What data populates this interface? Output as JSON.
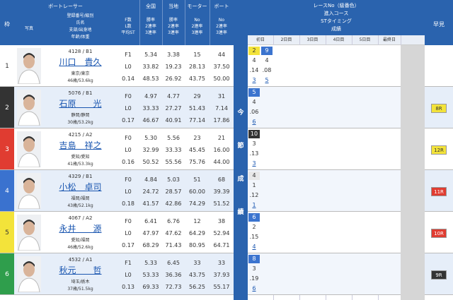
{
  "header": {
    "waku": "枠",
    "racer": "ボートレーサー",
    "photo": "写真",
    "info": [
      "登録番号/級別",
      "氏名",
      "支部/出身地",
      "年齢/体重"
    ],
    "fls": [
      "F数",
      "L数",
      "平均ST"
    ],
    "zenkoku": "全国",
    "touchi": "当地",
    "motor": "モーター",
    "boat": "ボート",
    "rate_sub": [
      "勝率",
      "2連率",
      "3連率"
    ],
    "no_sub": [
      "No",
      "2連率",
      "3連率"
    ],
    "results": [
      "レースNo（級番色）",
      "進入コース",
      "STタイミング",
      "成績"
    ],
    "hayami": "早見",
    "days": [
      "初日",
      "2日目",
      "3日目",
      "4日目",
      "5日目",
      "最終日"
    ],
    "konsetsu": [
      "今",
      "節",
      "成",
      "績"
    ]
  },
  "racers": [
    {
      "waku": "1",
      "reg": "4128 / B1",
      "name": "川口　貴久",
      "branch": "東京/東京",
      "age": "46歳/53.6kg",
      "fls": [
        "F1",
        "L0",
        "0.14"
      ],
      "zenkoku": [
        "5.34",
        "33.82",
        "48.53"
      ],
      "touchi": [
        "3.38",
        "19.23",
        "26.92"
      ],
      "motor": [
        "15",
        "28.13",
        "43.75"
      ],
      "boat": [
        "44",
        "37.50",
        "50.00"
      ],
      "races": [
        {
          "no": "2",
          "color": "#f3e33a",
          "course": "4",
          "st": ".14",
          "result": "3"
        },
        {
          "no": "9",
          "color": "#3b74cf",
          "course": "4",
          "st": ".08",
          "result": "5"
        }
      ]
    },
    {
      "waku": "2",
      "reg": "5076 / B1",
      "name": "石原　　光",
      "branch": "静岡/静岡",
      "age": "30歳/53.2kg",
      "fls": [
        "F0",
        "L0",
        "0.17"
      ],
      "zenkoku": [
        "4.97",
        "33.33",
        "46.67"
      ],
      "touchi": [
        "4.77",
        "27.27",
        "40.91"
      ],
      "motor": [
        "29",
        "51.43",
        "77.14"
      ],
      "boat": [
        "31",
        "7.14",
        "17.86"
      ],
      "races": [
        {
          "no": "5",
          "color": "#3b74cf",
          "course": "4",
          "st": ".06",
          "result": "6"
        }
      ],
      "hayami": "8R",
      "hayami_color": "#f3e33a"
    },
    {
      "waku": "3",
      "reg": "4215 / A2",
      "name": "吉島　祥之",
      "branch": "愛知/愛知",
      "age": "41歳/53.3kg",
      "fls": [
        "F0",
        "L0",
        "0.16"
      ],
      "zenkoku": [
        "5.30",
        "32.99",
        "50.52"
      ],
      "touchi": [
        "5.56",
        "33.33",
        "55.56"
      ],
      "motor": [
        "23",
        "45.45",
        "75.76"
      ],
      "boat": [
        "21",
        "16.00",
        "44.00"
      ],
      "races": [
        {
          "no": "10",
          "color": "#333333",
          "course": "3",
          "st": ".13",
          "result": "3"
        }
      ],
      "hayami": "12R",
      "hayami_color": "#f3e33a"
    },
    {
      "waku": "4",
      "reg": "4329 / B1",
      "name": "小松　卓司",
      "branch": "福岡/福岡",
      "age": "43歳/52.1kg",
      "fls": [
        "F0",
        "L0",
        "0.18"
      ],
      "zenkoku": [
        "4.84",
        "24.72",
        "41.57"
      ],
      "touchi": [
        "5.03",
        "28.57",
        "42.86"
      ],
      "motor": [
        "51",
        "60.00",
        "74.29"
      ],
      "boat": [
        "68",
        "39.39",
        "51.52"
      ],
      "races": [
        {
          "no": "4",
          "color": "#e8e8e8",
          "course": "1",
          "st": ".12",
          "result": "1"
        }
      ],
      "hayami": "11R",
      "hayami_color": "#e03c31"
    },
    {
      "waku": "5",
      "reg": "4067 / A2",
      "name": "永井　　源",
      "branch": "愛知/福岡",
      "age": "46歳/52.6kg",
      "fls": [
        "F0",
        "L0",
        "0.17"
      ],
      "zenkoku": [
        "6.41",
        "47.97",
        "68.29"
      ],
      "touchi": [
        "6.76",
        "47.62",
        "71.43"
      ],
      "motor": [
        "12",
        "64.29",
        "80.95"
      ],
      "boat": [
        "38",
        "52.94",
        "64.71"
      ],
      "races": [
        {
          "no": "6",
          "color": "#3b74cf",
          "course": "2",
          "st": ".15",
          "result": "4"
        }
      ],
      "hayami": "10R",
      "hayami_color": "#e03c31"
    },
    {
      "waku": "6",
      "reg": "4532 / A1",
      "name": "秋元　　哲",
      "branch": "埼玉/栃木",
      "age": "37歳/51.5kg",
      "fls": [
        "F1",
        "L0",
        "0.13"
      ],
      "zenkoku": [
        "5.33",
        "53.33",
        "69.33"
      ],
      "touchi": [
        "6.45",
        "36.36",
        "72.73"
      ],
      "motor": [
        "33",
        "43.75",
        "56.25"
      ],
      "boat": [
        "33",
        "37.93",
        "55.17"
      ],
      "races": [
        {
          "no": "8",
          "color": "#3b74cf",
          "course": "3",
          "st": ".19",
          "result": "6"
        }
      ],
      "hayami": "9R",
      "hayami_color": "#333333"
    }
  ]
}
